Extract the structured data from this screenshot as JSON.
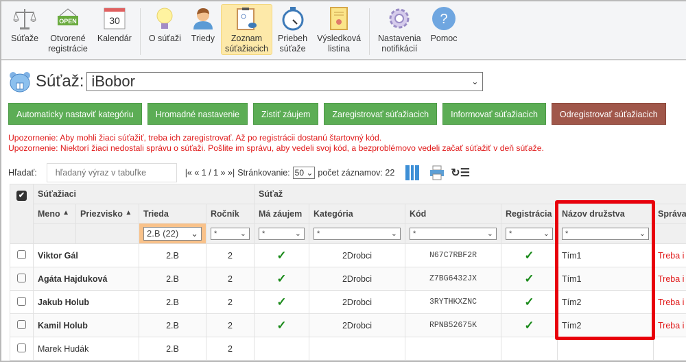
{
  "toolbar": {
    "items": [
      {
        "label": "Súťaže",
        "icon": "scales-icon"
      },
      {
        "label": "Otvorené\nregistrácie",
        "icon": "open-sign-icon",
        "icon_text": "OPEN"
      },
      {
        "label": "Kalendár",
        "icon": "calendar-icon",
        "icon_text": "30"
      },
      {
        "label": "O súťaži",
        "icon": "lightbulb-icon"
      },
      {
        "label": "Triedy",
        "icon": "person-icon"
      },
      {
        "label": "Zoznam\nsúťažiacich",
        "icon": "clipboard-icon",
        "active": true
      },
      {
        "label": "Priebeh\nsúťaže",
        "icon": "stopwatch-icon"
      },
      {
        "label": "Výsledková\nlistina",
        "icon": "certificate-icon"
      },
      {
        "label": "Nastavenia\nnotifikácií",
        "icon": "gear-icon"
      },
      {
        "label": "Pomoc",
        "icon": "help-icon",
        "icon_text": "?"
      }
    ]
  },
  "contest": {
    "label": "Súťaž:",
    "value": "iBobor"
  },
  "actions": [
    "Automaticky nastaviť kategóriu",
    "Hromadné nastavenie",
    "Zistiť záujem",
    "Zaregistrovať súťažiacich",
    "Informovať súťažiacich",
    "Odregistrovať súťažiacich"
  ],
  "warnings": [
    "Upozornenie: Aby mohli žiaci súťažiť, treba ich zaregistrovať. Až po registrácii dostanú štartovný kód.",
    "Upozornenie: Niektorí žiaci nedostali správu o súťaži. Pošlite im správu, aby vedeli svoj kód, a bezproblémovo vedeli začať súťažiť v deň súťaže."
  ],
  "search": {
    "label": "Hľadať:",
    "placeholder": "hľadaný výraz v tabuľke",
    "pager": "|« « 1 / 1 » »|",
    "page_size_label": "Stránkovanie:",
    "page_size": "50",
    "count": "počet záznamov: 22"
  },
  "table": {
    "groups": [
      "Súťažiaci",
      "Súťaž"
    ],
    "columns": [
      "Meno",
      "Priezvisko",
      "Trieda",
      "Ročník",
      "Má záujem",
      "Kategória",
      "Kód",
      "Registrácia",
      "Názov družstva",
      "Správa"
    ],
    "filters": {
      "trieda": "2.B (22)",
      "default": "*"
    },
    "rows": [
      {
        "name": "Viktor Gál",
        "trieda": "2.B",
        "rocnik": "2",
        "zaujem": true,
        "kategoria": "2Drobci",
        "kod": "N67C7RBF2R",
        "registracia": true,
        "druzstvo": "Tím1",
        "sprava": "Treba i"
      },
      {
        "name": "Agáta Hajduková",
        "trieda": "2.B",
        "rocnik": "2",
        "zaujem": true,
        "kategoria": "2Drobci",
        "kod": "Z7BG6432JX",
        "registracia": true,
        "druzstvo": "Tím1",
        "sprava": "Treba i"
      },
      {
        "name": "Jakub Holub",
        "trieda": "2.B",
        "rocnik": "2",
        "zaujem": true,
        "kategoria": "2Drobci",
        "kod": "3RYTHKXZNC",
        "registracia": true,
        "druzstvo": "Tím2",
        "sprava": "Treba i"
      },
      {
        "name": "Kamil Holub",
        "trieda": "2.B",
        "rocnik": "2",
        "zaujem": true,
        "kategoria": "2Drobci",
        "kod": "RPNB52675K",
        "registracia": true,
        "druzstvo": "Tím2",
        "sprava": "Treba i"
      },
      {
        "name": "Marek Hudák",
        "trieda": "2.B",
        "rocnik": "2",
        "zaujem": false,
        "kategoria": "",
        "kod": "",
        "registracia": false,
        "druzstvo": "",
        "sprava": ""
      }
    ]
  },
  "colors": {
    "green_button": "#5cad55",
    "brown_button": "#a0574a",
    "warning": "#e01818",
    "highlight": "#e8000b",
    "active_tab": "#fde9a9",
    "filter_active": "#f9c28a"
  }
}
